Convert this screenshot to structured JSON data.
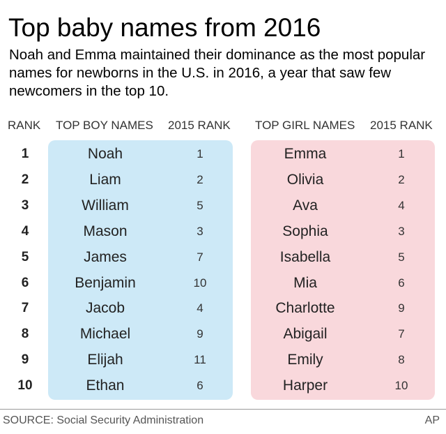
{
  "title": "Top baby names from 2016",
  "subtitle": "Noah and Emma maintained their dominance as the most popular names for newborns in the U.S. in 2016, a year that saw few newcomers in the top 10.",
  "columns": {
    "rank": "RANK",
    "boys": "TOP BOY NAMES",
    "boys_prev": "2015 RANK",
    "girls": "TOP GIRL NAMES",
    "girls_prev": "2015 RANK"
  },
  "colors": {
    "boys_panel": "#cde9f7",
    "girls_panel": "#f9d8dc"
  },
  "chart_data": {
    "type": "table",
    "rows": [
      {
        "rank": "1",
        "boy": "Noah",
        "boy_2015": "1",
        "girl": "Emma",
        "girl_2015": "1"
      },
      {
        "rank": "2",
        "boy": "Liam",
        "boy_2015": "2",
        "girl": "Olivia",
        "girl_2015": "2"
      },
      {
        "rank": "3",
        "boy": "William",
        "boy_2015": "5",
        "girl": "Ava",
        "girl_2015": "4"
      },
      {
        "rank": "4",
        "boy": "Mason",
        "boy_2015": "3",
        "girl": "Sophia",
        "girl_2015": "3"
      },
      {
        "rank": "5",
        "boy": "James",
        "boy_2015": "7",
        "girl": "Isabella",
        "girl_2015": "5"
      },
      {
        "rank": "6",
        "boy": "Benjamin",
        "boy_2015": "10",
        "girl": "Mia",
        "girl_2015": "6"
      },
      {
        "rank": "7",
        "boy": "Jacob",
        "boy_2015": "4",
        "girl": "Charlotte",
        "girl_2015": "9"
      },
      {
        "rank": "8",
        "boy": "Michael",
        "boy_2015": "9",
        "girl": "Abigail",
        "girl_2015": "7"
      },
      {
        "rank": "9",
        "boy": "Elijah",
        "boy_2015": "11",
        "girl": "Emily",
        "girl_2015": "8"
      },
      {
        "rank": "10",
        "boy": "Ethan",
        "boy_2015": "6",
        "girl": "Harper",
        "girl_2015": "10"
      }
    ]
  },
  "footer": {
    "source": "SOURCE: Social Security Administration",
    "credit": "AP"
  }
}
